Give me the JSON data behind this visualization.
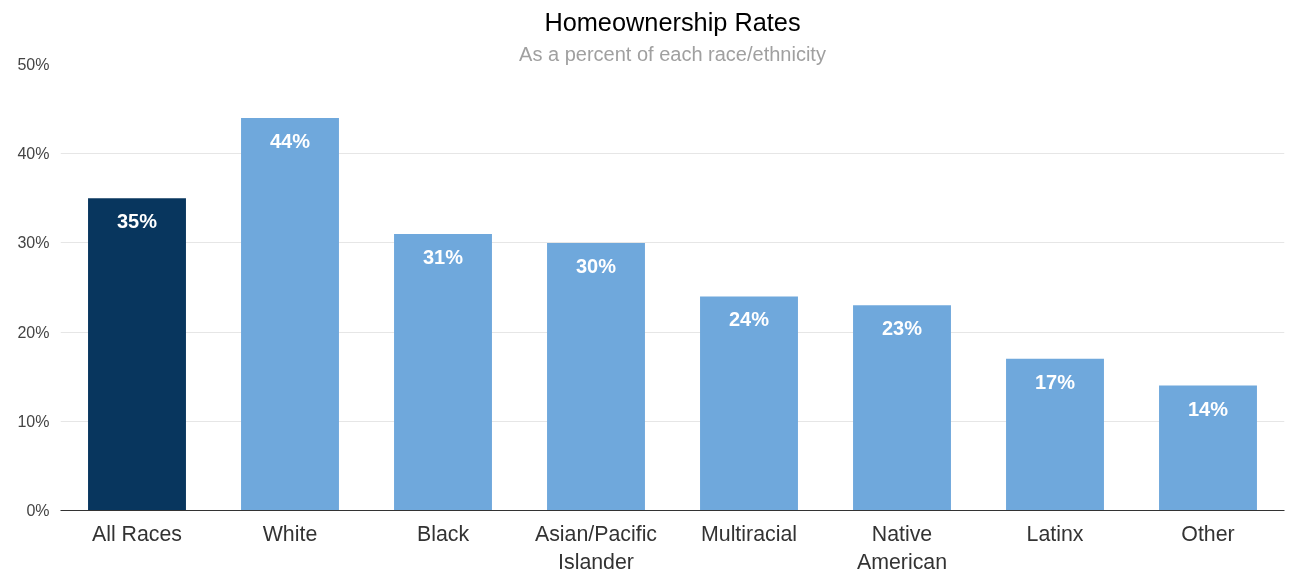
{
  "chart_data": {
    "type": "bar",
    "title": "Homeownership Rates",
    "subtitle": "As a percent of each race/ethnicity",
    "categories": [
      "All Races",
      "White",
      "Black",
      "Asian/Pacific Islander",
      "Multiracial",
      "Native American",
      "Latinx",
      "Other"
    ],
    "values": [
      35,
      44,
      31,
      30,
      24,
      23,
      17,
      14
    ],
    "colors": [
      "#08365e",
      "#6fa8dc",
      "#6fa8dc",
      "#6fa8dc",
      "#6fa8dc",
      "#6fa8dc",
      "#6fa8dc",
      "#6fa8dc"
    ],
    "value_labels": [
      "35%",
      "44%",
      "31%",
      "30%",
      "24%",
      "23%",
      "17%",
      "14%"
    ],
    "ylim": [
      0,
      50
    ],
    "yticks": [
      {
        "value": 0,
        "label": "0%"
      },
      {
        "value": 10,
        "label": "10%"
      },
      {
        "value": 20,
        "label": "20%"
      },
      {
        "value": 30,
        "label": "30%"
      },
      {
        "value": 40,
        "label": "40%"
      },
      {
        "value": 50,
        "label": "50%"
      }
    ],
    "grid": "y"
  }
}
